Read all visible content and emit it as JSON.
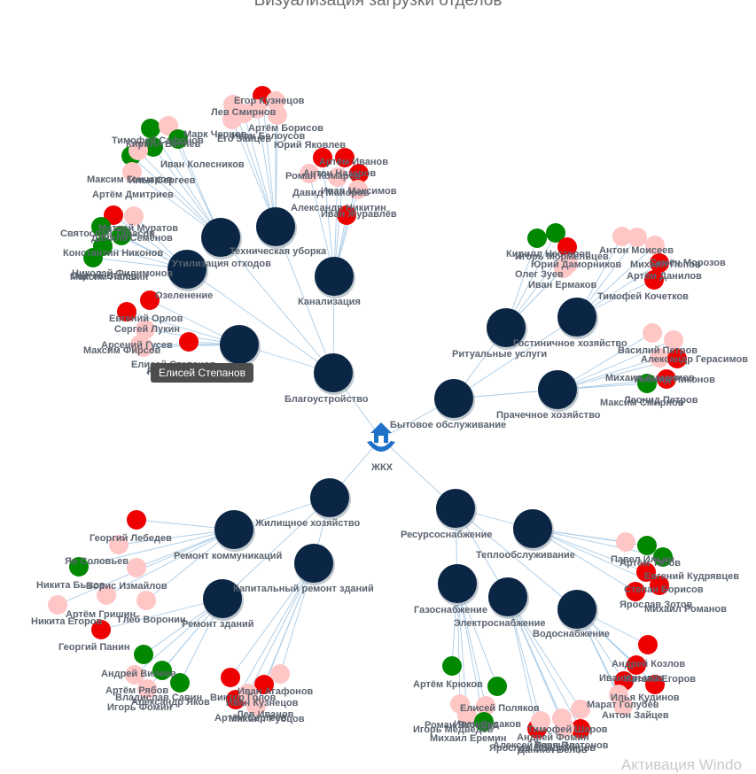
{
  "title": "Визуализация загрузки отделов",
  "root": {
    "label": "ЖКХ",
    "icon": "hands-house-icon"
  },
  "colors": {
    "department": "#0b2644",
    "edge": "#a9cbe6",
    "low": "#ffc6c6",
    "high": "#ef0000",
    "ok": "#008800"
  },
  "tooltip": "Елисей Степанов",
  "watermark": "Активация Windo",
  "groups": [
    {
      "label": "Благоустройство",
      "departments": [
        {
          "label": "Техническая уборка",
          "staff": [
            [
              "Лев Смирнов",
              "low"
            ],
            [
              "Егор Кузнецов",
              "high"
            ],
            [
              "Марк Чернов",
              "low"
            ],
            [
              "Его Зайцев",
              "low"
            ],
            [
              "Иван Белоусов",
              "low"
            ],
            [
              "Юрий Яковлев",
              "low"
            ],
            [
              "Артём Борисов",
              "low"
            ]
          ]
        },
        {
          "label": "Утилизация отходов",
          "staff": [
            [
              "Тимофей Сафонов",
              "ok"
            ],
            [
              "Кирилл Беляев",
              "low"
            ],
            [
              "Максим Гончаров",
              "ok"
            ],
            [
              "Илья Сергеев",
              "ok"
            ],
            [
              "Иван Колесников",
              "ok"
            ],
            [
              "Артём Дмитриев",
              "low"
            ],
            [
              "Матвей Муратов",
              "low"
            ]
          ]
        },
        {
          "label": "Канализация",
          "staff": [
            [
              "Роман Комаров",
              "low"
            ],
            [
              "Антон Назаров",
              "high"
            ],
            [
              "Давид Майоров",
              "low"
            ],
            [
              "Иван Максимов",
              "high"
            ],
            [
              "Артём Иванов",
              "high"
            ],
            [
              "Иван Журавлёв",
              "high"
            ],
            [
              "Александр Никитин",
              "low"
            ]
          ]
        },
        {
          "label": "Озеленение",
          "staff": [
            [
              "Святослав Тарасов",
              "high"
            ],
            [
              "Данила Семёнов",
              "low"
            ],
            [
              "Константин Никонов",
              "ok"
            ],
            [
              "Николай Филимонов",
              "ok"
            ],
            [
              "Максим Лапшин",
              "ok"
            ],
            [
              "Сергей Белов",
              "ok"
            ]
          ]
        },
        {
          "label": "Аварийное хозяйство",
          "staff": [
            [
              "Евгений Орлов",
              "high"
            ],
            [
              "Сергей Лукин",
              "high"
            ],
            [
              "Арсений Гусев",
              "low"
            ],
            [
              "Максим Фирсов",
              "low"
            ],
            [
              "Елисей Степанов",
              "low"
            ],
            [
              "Кирилл Григорьев",
              "high"
            ]
          ]
        }
      ]
    },
    {
      "label": "Бытовое обслуживание",
      "departments": [
        {
          "label": "Ритуальные услуги",
          "staff": [
            [
              "Кирилл Нестеров",
              "ok"
            ],
            [
              "Игорь Мормельцев",
              "ok"
            ],
            [
              "Юрий Даморников",
              "high"
            ],
            [
              "Олег Зуев",
              "low"
            ],
            [
              "Иван Ермаков",
              "low"
            ]
          ]
        },
        {
          "label": "Гостиничное хозяйство",
          "staff": [
            [
              "Антон Моисеев",
              "low"
            ],
            [
              "Михаил Попов",
              "low"
            ],
            [
              "Семён Морозов",
              "low"
            ],
            [
              "Артём Данилов",
              "high"
            ],
            [
              "Тимофей Кочетков",
              "high"
            ]
          ]
        },
        {
          "label": "Прачечное хозяйство",
          "staff": [
            [
              "Василий Петров",
              "low"
            ],
            [
              "Александр Герасимов",
              "low"
            ],
            [
              "Михаил Анисимов",
              "low"
            ],
            [
              "Леонид Никонов",
              "high"
            ],
            [
              "Леонид Петров",
              "high"
            ],
            [
              "Максим Смирнов",
              "ok"
            ]
          ]
        }
      ]
    },
    {
      "label": "Жилищное хозяйство",
      "departments": [
        {
          "label": "Ремонт коммуникаций",
          "staff": [
            [
              "Георгий Лебедев",
              "high"
            ],
            [
              "Ян Соловьев",
              "low"
            ],
            [
              "Никита Быков",
              "ok"
            ],
            [
              "Борис Измайлов",
              "low"
            ],
            [
              "Артём Гришин",
              "low"
            ],
            [
              "Глеб Воронин",
              "low"
            ],
            [
              "Никита Егоров",
              "low"
            ]
          ]
        },
        {
          "label": "Капитальный ремонт зданий",
          "staff": [
            [
              "Иван Агафонов",
              "low"
            ],
            [
              "Виктор Голов",
              "high"
            ],
            [
              "Иван Кузнецов",
              "high"
            ],
            [
              "Лев Иванов",
              "low"
            ],
            [
              "Артём Сергеев",
              "high"
            ],
            [
              "Михаил Рубцов",
              "low"
            ]
          ]
        },
        {
          "label": "Ремонт зданий",
          "staff": [
            [
              "Георгий Панин",
              "high"
            ],
            [
              "Андрей Вилеев",
              "ok"
            ],
            [
              "Артём Рябов",
              "ok"
            ],
            [
              "Игорь Фомин",
              "low"
            ],
            [
              "Александр Яков",
              "ok"
            ],
            [
              "Владислав Савин",
              "low"
            ]
          ]
        }
      ]
    },
    {
      "label": "Ресурсоснабжение",
      "departments": [
        {
          "label": "Теплообслуживание",
          "staff": [
            [
              "Павел Ильин",
              "low"
            ],
            [
              "Артём Титов",
              "ok"
            ],
            [
              "Евгений Кудрявцев",
              "ok"
            ],
            [
              "Степан Борисов",
              "high"
            ],
            [
              "Михаил Романов",
              "high"
            ],
            [
              "Ярослав Зотов",
              "high"
            ]
          ]
        },
        {
          "label": "Газоснабжение",
          "staff": [
            [
              "Артём Крюков",
              "ok"
            ],
            [
              "Роман Яковлев",
              "low"
            ],
            [
              "Елисей Поляков",
              "ok"
            ],
            [
              "Иван Судаков",
              "low"
            ],
            [
              "Михаил Еремин",
              "low"
            ],
            [
              "Игорь Медведев",
              "ok"
            ]
          ]
        },
        {
          "label": "Электроснабжение",
          "staff": [
            [
              "Ярослав Владимиров",
              "high"
            ],
            [
              "Андрей Фомин",
              "low"
            ],
            [
              "Тимофей Шаров",
              "low"
            ],
            [
              "Иван Платонов",
              "high"
            ],
            [
              "Алексей Горячев",
              "low"
            ],
            [
              "Даниил Белов",
              "low"
            ]
          ]
        },
        {
          "label": "Водоснабжение",
          "staff": [
            [
              "Андрей Козлов",
              "high"
            ],
            [
              "Матвей Егоров",
              "high"
            ],
            [
              "Иван Крылов",
              "high"
            ],
            [
              "Антон Зайцев",
              "low"
            ],
            [
              "Марат Голубев",
              "low"
            ],
            [
              "Илья Кудинов",
              "high"
            ]
          ]
        }
      ]
    }
  ]
}
